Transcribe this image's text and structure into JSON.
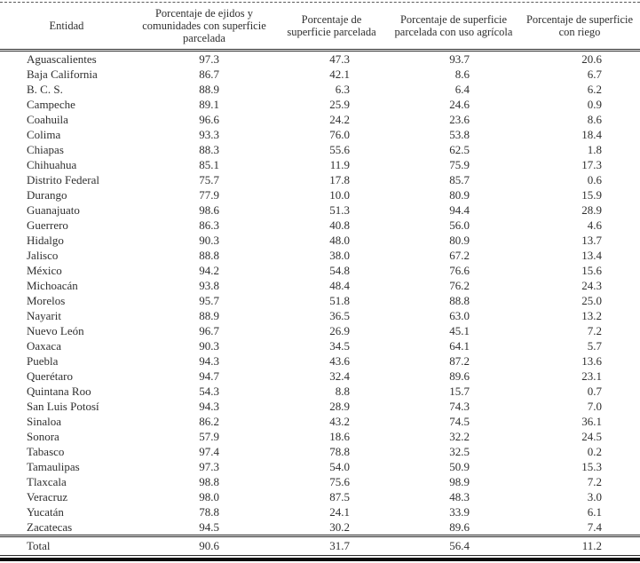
{
  "page": {
    "type": "statistical-table",
    "language": "es"
  },
  "colors": {
    "background": "#ffffff",
    "text": "#2f2f2f",
    "rule": "#2a2a2a",
    "bottom_bar": "#0b0b0b"
  },
  "table": {
    "columns": [
      "Entidad",
      "Porcentaje de ejidos y comunidades con superficie parcelada",
      "Porcentaje de superficie parcelada",
      "Porcentaje de superficie parcelada con uso agrícola",
      "Porcentaje de superficie con riego"
    ],
    "rows": [
      [
        "Aguascalientes",
        "97.3",
        "47.3",
        "93.7",
        "20.6"
      ],
      [
        "Baja California",
        "86.7",
        "42.1",
        "8.6",
        "6.7"
      ],
      [
        "B. C. S.",
        "88.9",
        "6.3",
        "6.4",
        "6.2"
      ],
      [
        "Campeche",
        "89.1",
        "25.9",
        "24.6",
        "0.9"
      ],
      [
        "Coahuila",
        "96.6",
        "24.2",
        "23.6",
        "8.6"
      ],
      [
        "Colima",
        "93.3",
        "76.0",
        "53.8",
        "18.4"
      ],
      [
        "Chiapas",
        "88.3",
        "55.6",
        "62.5",
        "1.8"
      ],
      [
        "Chihuahua",
        "85.1",
        "11.9",
        "75.9",
        "17.3"
      ],
      [
        "Distrito Federal",
        "75.7",
        "17.8",
        "85.7",
        "0.6"
      ],
      [
        "Durango",
        "77.9",
        "10.0",
        "80.9",
        "15.9"
      ],
      [
        "Guanajuato",
        "98.6",
        "51.3",
        "94.4",
        "28.9"
      ],
      [
        "Guerrero",
        "86.3",
        "40.8",
        "56.0",
        "4.6"
      ],
      [
        "Hidalgo",
        "90.3",
        "48.0",
        "80.9",
        "13.7"
      ],
      [
        "Jalisco",
        "88.8",
        "38.0",
        "67.2",
        "13.4"
      ],
      [
        "México",
        "94.2",
        "54.8",
        "76.6",
        "15.6"
      ],
      [
        "Michoacán",
        "93.8",
        "48.4",
        "76.2",
        "24.3"
      ],
      [
        "Morelos",
        "95.7",
        "51.8",
        "88.8",
        "25.0"
      ],
      [
        "Nayarit",
        "88.9",
        "36.5",
        "63.0",
        "13.2"
      ],
      [
        "Nuevo León",
        "96.7",
        "26.9",
        "45.1",
        "7.2"
      ],
      [
        "Oaxaca",
        "90.3",
        "34.5",
        "64.1",
        "5.7"
      ],
      [
        "Puebla",
        "94.3",
        "43.6",
        "87.2",
        "13.6"
      ],
      [
        "Querétaro",
        "94.7",
        "32.4",
        "89.6",
        "23.1"
      ],
      [
        "Quintana Roo",
        "54.3",
        "8.8",
        "15.7",
        "0.7"
      ],
      [
        "San Luis Potosí",
        "94.3",
        "28.9",
        "74.3",
        "7.0"
      ],
      [
        "Sinaloa",
        "86.2",
        "43.2",
        "74.5",
        "36.1"
      ],
      [
        "Sonora",
        "57.9",
        "18.6",
        "32.2",
        "24.5"
      ],
      [
        "Tabasco",
        "97.4",
        "78.8",
        "32.5",
        "0.2"
      ],
      [
        "Tamaulipas",
        "97.3",
        "54.0",
        "50.9",
        "15.3"
      ],
      [
        "Tlaxcala",
        "98.8",
        "75.6",
        "98.9",
        "7.2"
      ],
      [
        "Veracruz",
        "98.0",
        "87.5",
        "48.3",
        "3.0"
      ],
      [
        "Yucatán",
        "78.8",
        "24.1",
        "33.9",
        "6.1"
      ],
      [
        "Zacatecas",
        "94.5",
        "30.2",
        "89.6",
        "7.4"
      ]
    ],
    "total": [
      "Total",
      "90.6",
      "31.7",
      "56.4",
      "11.2"
    ]
  }
}
